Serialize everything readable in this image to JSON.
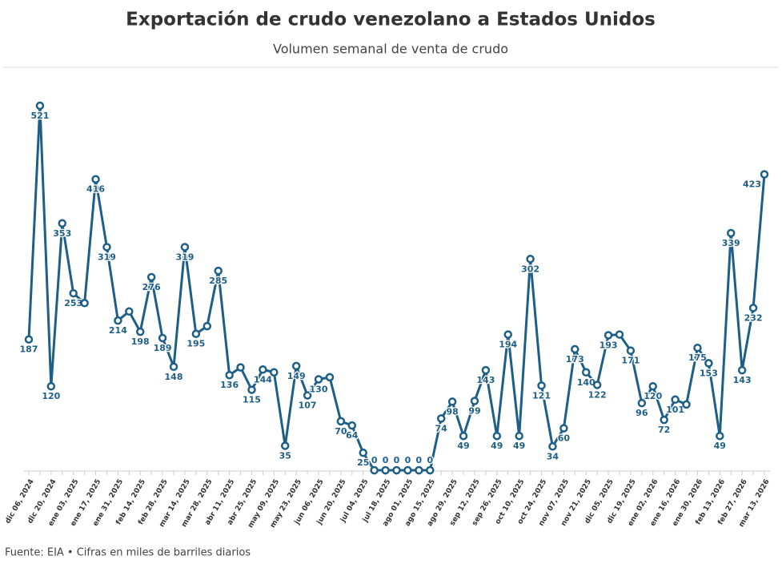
{
  "chart_data": {
    "type": "line",
    "title": "Exportación de crudo venezolano a Estados Unidos",
    "subtitle": "Volumen semanal de venta de crudo",
    "source": "Fuente: EIA • Cifras en miles de barriles diarios",
    "categories": [
      "dic 06, 2024",
      null,
      "dic 20, 2024",
      null,
      "ene 03, 2025",
      null,
      "ene 17, 2025",
      null,
      "ene 31, 2025",
      null,
      "feb 14, 2025",
      null,
      "feb 28, 2025",
      null,
      "mar 14, 2025",
      null,
      "mar 28, 2025",
      null,
      "abr 11, 2025",
      null,
      "abr 25, 2025",
      null,
      "may 09, 2025",
      null,
      "may 23, 2025",
      null,
      "jun 06, 2025",
      null,
      "jun 20, 2025",
      null,
      "jul 04, 2025",
      null,
      "jul 18, 2025",
      null,
      "ago 01, 2025",
      null,
      "ago 15, 2025",
      null,
      "ago 29, 2025",
      null,
      "sep 12, 2025",
      null,
      "sep 26, 2025",
      null,
      "oct 10, 2025",
      null,
      "oct 24, 2025",
      null,
      "nov 07, 2025",
      null,
      "nov 21, 2025",
      null,
      "dic 05, 2025",
      null,
      "dic 19, 2025",
      null,
      "ene 02, 2026",
      null,
      "ene 16, 2026",
      null,
      "ene 30, 2026",
      null,
      "feb 13, 2026",
      null,
      "feb 27, 2026",
      null,
      "mar 13, 2026"
    ],
    "series": [
      {
        "name": "Volumen",
        "color": "#1d5f87",
        "values": [
          187,
          521,
          120,
          353,
          253,
          239,
          416,
          319,
          214,
          227,
          198,
          276,
          189,
          148,
          319,
          195,
          206,
          285,
          136,
          147,
          115,
          144,
          140,
          35,
          149,
          107,
          130,
          133,
          70,
          64,
          25,
          0,
          0,
          0,
          0,
          0,
          0,
          74,
          98,
          49,
          99,
          143,
          49,
          194,
          49,
          302,
          121,
          34,
          60,
          173,
          140,
          122,
          193,
          194,
          171,
          96,
          120,
          72,
          101,
          94,
          175,
          153,
          49,
          339,
          143,
          232,
          423
        ],
        "value_labels": [
          "187",
          "521",
          "120",
          "353",
          "253",
          null,
          "416",
          "319",
          "214",
          null,
          "198",
          "276",
          "189",
          "148",
          "319",
          "195",
          null,
          "285",
          "136",
          null,
          "115",
          "144",
          null,
          "35",
          "149",
          "107",
          "130",
          null,
          "70",
          "64",
          "25",
          "0",
          "0",
          "0",
          "0",
          "0",
          "0",
          "74",
          "98",
          "49",
          "99",
          "143",
          "49",
          "194",
          "49",
          "302",
          "121",
          "34",
          "60",
          "173",
          "140",
          "122",
          "193",
          null,
          "171",
          "96",
          "120",
          "72",
          "101",
          null,
          "175",
          "153",
          "49",
          "339",
          "143",
          "232",
          "423"
        ]
      }
    ],
    "ylim": [
      0,
      560
    ]
  }
}
